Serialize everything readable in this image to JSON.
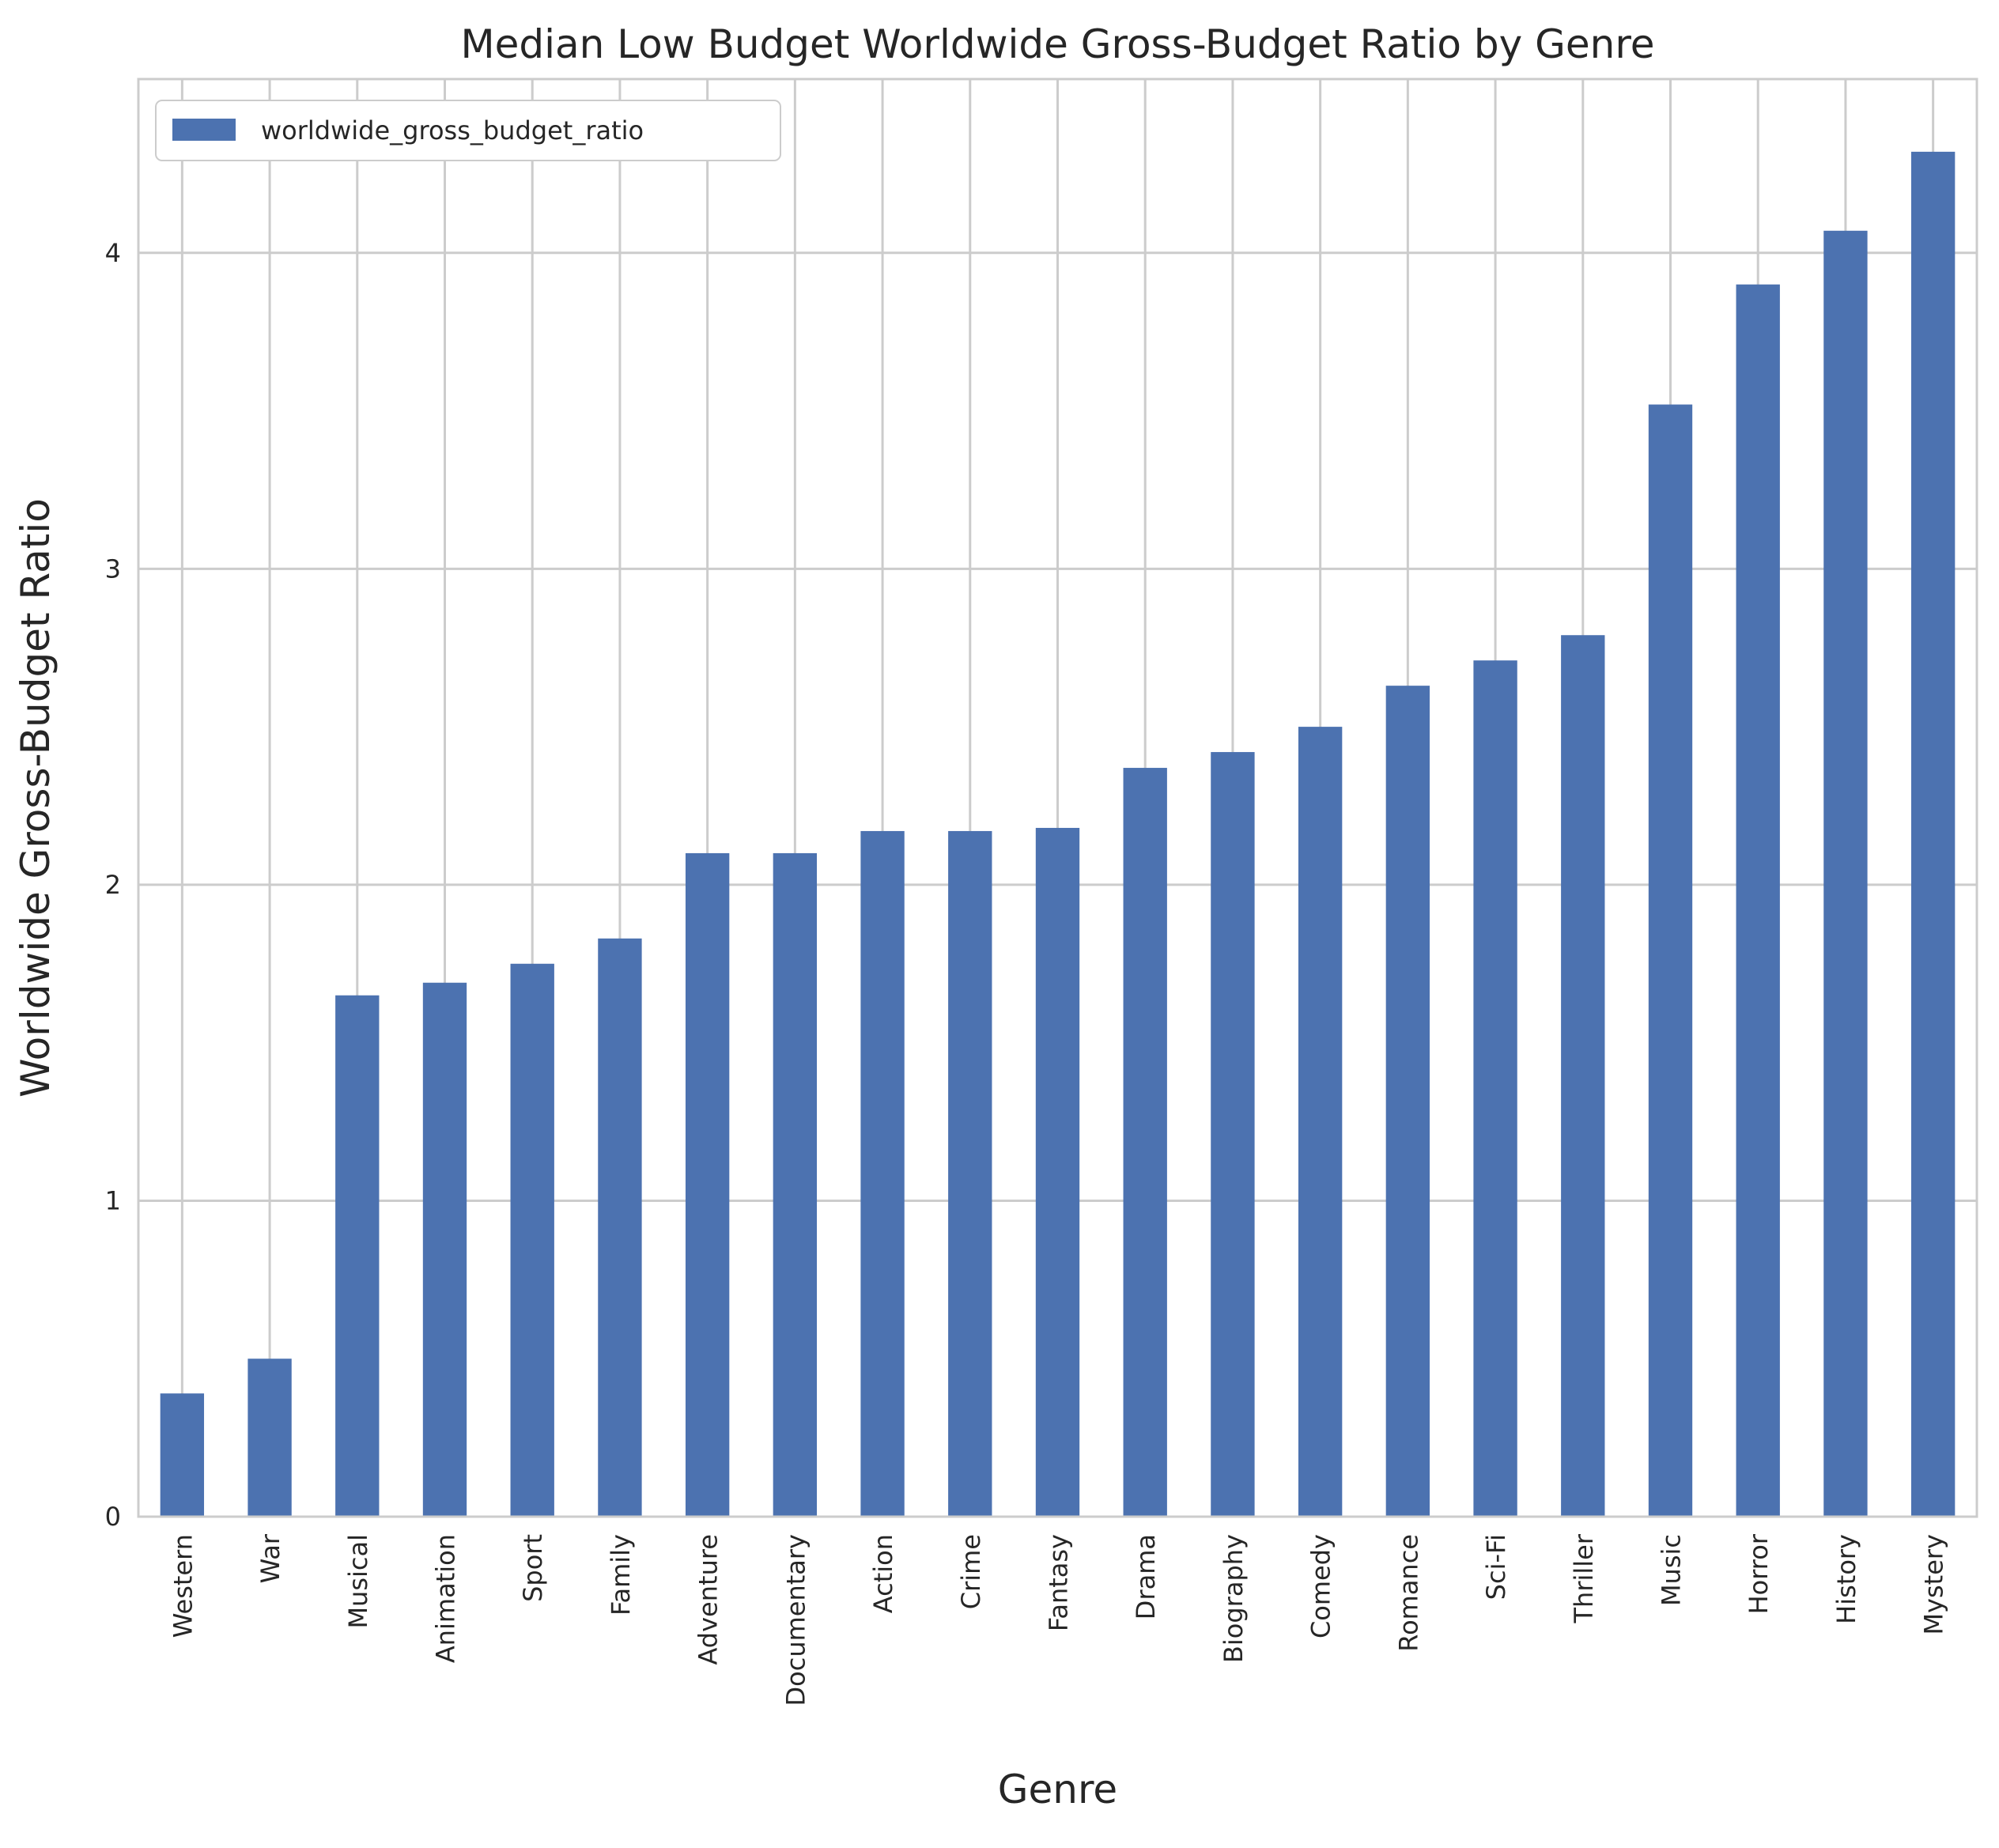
{
  "chart_data": {
    "type": "bar",
    "title": "Median Low Budget Worldwide Gross-Budget Ratio by Genre",
    "xlabel": "Genre",
    "ylabel": "Worldwide Gross-Budget Ratio",
    "categories": [
      "Western",
      "War",
      "Musical",
      "Animation",
      "Sport",
      "Family",
      "Adventure",
      "Documentary",
      "Action",
      "Crime",
      "Fantasy",
      "Drama",
      "Biography",
      "Comedy",
      "Romance",
      "Sci-Fi",
      "Thriller",
      "Music",
      "Horror",
      "History",
      "Mystery"
    ],
    "series": [
      {
        "name": "worldwide_gross_budget_ratio",
        "color": "#4c72b0",
        "values": [
          0.39,
          0.5,
          1.65,
          1.69,
          1.75,
          1.83,
          2.1,
          2.1,
          2.17,
          2.17,
          2.18,
          2.37,
          2.42,
          2.5,
          2.63,
          2.71,
          2.79,
          3.52,
          3.9,
          4.07,
          4.32
        ]
      }
    ],
    "ylim": [
      0,
      4.55
    ],
    "yticks": [
      0,
      1,
      2,
      3,
      4
    ],
    "grid": true,
    "legend": "top-left"
  }
}
